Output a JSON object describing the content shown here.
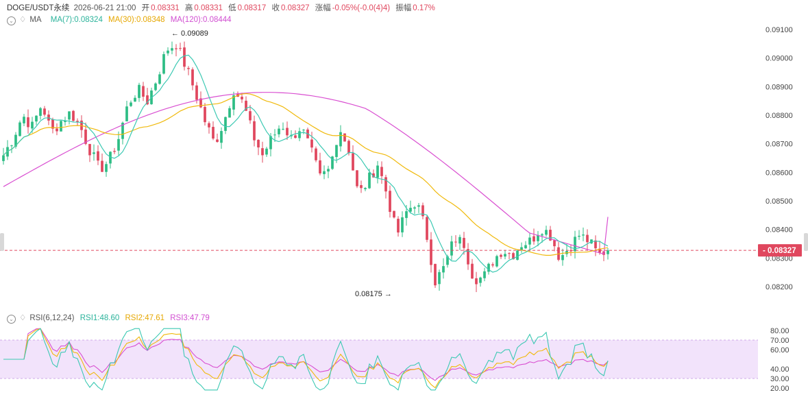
{
  "header": {
    "symbol": "DOGE/USDT永续",
    "datetime": "2026-06-21 21:00",
    "open_label": "开",
    "open": "0.08331",
    "high_label": "高",
    "high": "0.08331",
    "low_label": "低",
    "low": "0.08317",
    "close_label": "收",
    "close": "0.08327",
    "change_label": "涨幅",
    "change": "-0.05%(-0.0(4)4)",
    "amp_label": "振幅",
    "amp": "0.17%"
  },
  "ma_legend": {
    "name": "MA",
    "ma7": "MA(7):0.08324",
    "ma30": "MA(30):0.08348",
    "ma120": "MA(120):0.08444"
  },
  "rsi_legend": {
    "name": "RSI(6,12,24)",
    "rsi1": "RSI1:48.60",
    "rsi2": "RSI2:47.61",
    "rsi3": "RSI3:47.79"
  },
  "colors": {
    "up": "#2ebd85",
    "down": "#e0475e",
    "ma7": "#3cc9b3",
    "ma30": "#f0b90b",
    "ma120": "#d94fd1",
    "rsi1": "#3cc9b3",
    "rsi2": "#f0b90b",
    "rsi3": "#d94fd1",
    "rsi_band": "#f2e3fb",
    "price_line": "#e0475e"
  },
  "chart_data": [
    {
      "type": "candlestick",
      "title": "DOGE/USDT永续",
      "y_ticks": [
        "0.09100",
        "0.09000",
        "0.08900",
        "0.08800",
        "0.08700",
        "0.08600",
        "0.08500",
        "0.08400",
        "0.08300",
        "0.08200"
      ],
      "ylim": [
        0.08175,
        0.091
      ],
      "current_price": "0.08327",
      "high_annotation": "0.09089",
      "low_annotation": "0.08175",
      "candles_approx": {
        "count": 148,
        "anchors_close": [
          0.0866,
          0.0872,
          0.088,
          0.0876,
          0.0884,
          0.0874,
          0.0878,
          0.0881,
          0.0876,
          0.0868,
          0.0861,
          0.0864,
          0.0872,
          0.0884,
          0.0889,
          0.0885,
          0.0893,
          0.0903,
          0.0905,
          0.0897,
          0.0888,
          0.0878,
          0.087,
          0.0878,
          0.0889,
          0.0884,
          0.0873,
          0.0866,
          0.0872,
          0.0877,
          0.0872,
          0.0876,
          0.0868,
          0.0858,
          0.0861,
          0.0876,
          0.0868,
          0.0852,
          0.0857,
          0.0863,
          0.0852,
          0.0838,
          0.0846,
          0.085,
          0.084,
          0.0822,
          0.0827,
          0.0837,
          0.0835,
          0.0823,
          0.0823,
          0.0829,
          0.0833,
          0.0831,
          0.0835,
          0.0836,
          0.0841,
          0.0838,
          0.083,
          0.0834,
          0.0838,
          0.0836,
          0.0831,
          0.0833
        ]
      },
      "series": [
        {
          "name": "MA(7)",
          "last": 0.08324
        },
        {
          "name": "MA(30)",
          "last": 0.08348
        },
        {
          "name": "MA(120)",
          "last": 0.08444
        }
      ]
    },
    {
      "type": "line",
      "title": "RSI(6,12,24)",
      "y_ticks": [
        "80.00",
        "70.00",
        "60.00",
        "40.00",
        "30.00",
        "20.00"
      ],
      "ylim": [
        20,
        80
      ],
      "band": [
        30,
        70
      ],
      "series": [
        {
          "name": "RSI1",
          "last": 48.6
        },
        {
          "name": "RSI2",
          "last": 47.61
        },
        {
          "name": "RSI3",
          "last": 47.79
        }
      ]
    }
  ]
}
